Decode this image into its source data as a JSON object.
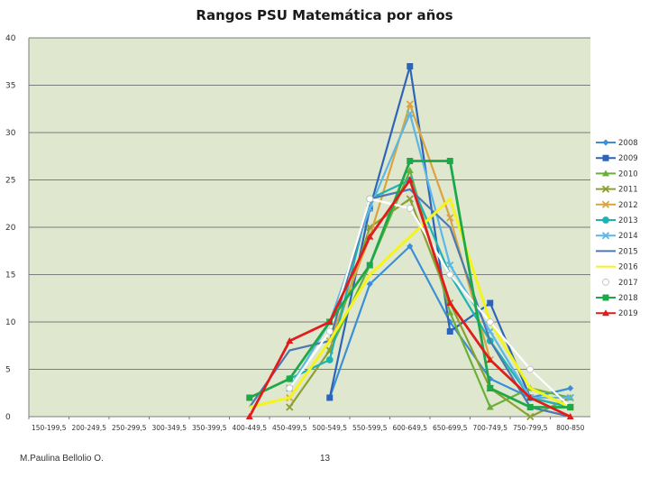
{
  "footer": {
    "author": "M.Paulina Bellolio O.",
    "page_number": "13"
  },
  "colors": {
    "plot_bg": "#dfe8cf",
    "gridline": "#7d7d7d"
  },
  "chart_data": {
    "type": "line",
    "title": "Rangos PSU Matemática por años",
    "xlabel": "",
    "ylabel": "",
    "ylim": [
      0,
      40
    ],
    "yticks": [
      0,
      5,
      10,
      15,
      20,
      25,
      30,
      35,
      40
    ],
    "grid": true,
    "legend_position": "right",
    "categories": [
      "150-199,5",
      "200-249,5",
      "250-299,5",
      "300-349,5",
      "350-399,5",
      "400-449,5",
      "450-499,5",
      "500-549,5",
      "550-599,5",
      "600-649,5",
      "650-699,5",
      "700-749,5",
      "750-799,5",
      "800-850"
    ],
    "series": [
      {
        "name": "2008",
        "color": "#3a8fd6",
        "marker": "diamond",
        "values": [
          null,
          null,
          null,
          null,
          null,
          null,
          null,
          2,
          14,
          18,
          10,
          4,
          2,
          3
        ]
      },
      {
        "name": "2009",
        "color": "#2e64b8",
        "marker": "square",
        "values": [
          null,
          null,
          null,
          null,
          null,
          null,
          null,
          2,
          22,
          37,
          9,
          12,
          2,
          1
        ]
      },
      {
        "name": "2010",
        "color": "#6aaf3c",
        "marker": "triangle",
        "values": [
          null,
          null,
          null,
          null,
          null,
          null,
          null,
          7,
          16,
          26,
          11,
          1,
          3,
          2
        ]
      },
      {
        "name": "2011",
        "color": "#8aa030",
        "marker": "x",
        "values": [
          null,
          null,
          null,
          null,
          null,
          null,
          1,
          7,
          20,
          23,
          12,
          3,
          0,
          2
        ]
      },
      {
        "name": "2012",
        "color": "#d9a440",
        "marker": "x",
        "values": [
          null,
          null,
          null,
          null,
          null,
          null,
          2,
          8,
          19,
          33,
          21,
          6,
          2,
          1
        ]
      },
      {
        "name": "2013",
        "color": "#1eb3b3",
        "marker": "circle",
        "values": [
          null,
          null,
          null,
          null,
          null,
          null,
          4,
          6,
          23,
          25,
          15,
          8,
          2,
          1
        ]
      },
      {
        "name": "2014",
        "color": "#5ab7e6",
        "marker": "x",
        "values": [
          null,
          null,
          null,
          null,
          null,
          null,
          3,
          10,
          22,
          32,
          16,
          9,
          2,
          2
        ]
      },
      {
        "name": "2015",
        "color": "#4f78b0",
        "marker": "none",
        "values": [
          null,
          null,
          null,
          null,
          null,
          1,
          7,
          8,
          23,
          24,
          20,
          8,
          1,
          0
        ]
      },
      {
        "name": "2016",
        "color": "#f4f41c",
        "marker": "none",
        "values": [
          null,
          null,
          null,
          null,
          null,
          1,
          2,
          8,
          15,
          19,
          23,
          10,
          3,
          1
        ]
      },
      {
        "name": "2017",
        "color": "#ffffff",
        "marker": "circle",
        "values": [
          null,
          null,
          null,
          null,
          null,
          null,
          3,
          9,
          23,
          22,
          15,
          10,
          5,
          1
        ]
      },
      {
        "name": "2018",
        "color": "#1da84a",
        "marker": "square",
        "values": [
          null,
          null,
          null,
          null,
          null,
          2,
          4,
          10,
          16,
          27,
          27,
          3,
          1,
          1
        ]
      },
      {
        "name": "2019",
        "color": "#e01c1c",
        "marker": "triangle",
        "values": [
          null,
          null,
          null,
          null,
          null,
          0,
          8,
          10,
          19,
          25,
          12,
          6,
          2,
          0
        ]
      }
    ]
  }
}
